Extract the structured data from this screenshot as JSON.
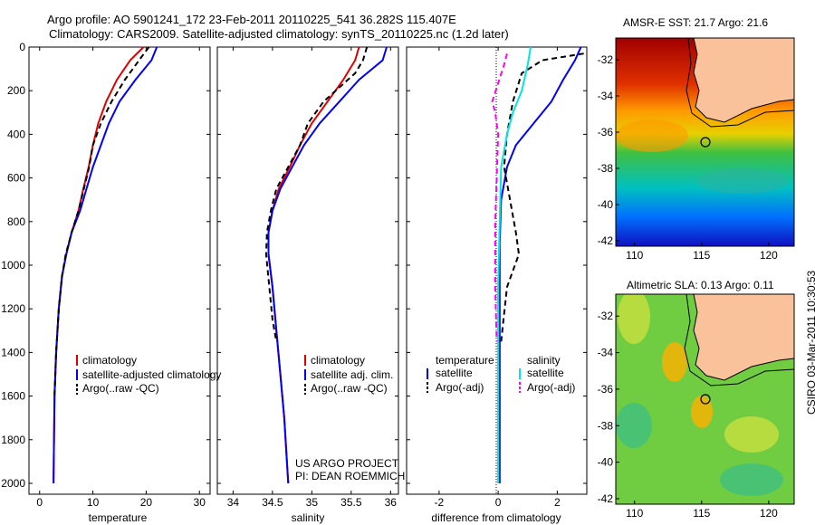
{
  "header": {
    "line1": "Argo profile: AO 5901241_172 23-Feb-2011 20110225_541 36.282S 115.407E",
    "line2": "Climatology: CARS2009. Satellite-adjusted climatology: synTS_20110225.nc (1.2d later)"
  },
  "side_label": "CSIRO 03-Mar-2011 10:30:53",
  "panels": {
    "temperature": {
      "xlabel": "temperature",
      "xticks": [
        "0",
        "10",
        "20",
        "30"
      ],
      "yticks": [
        "0",
        "200",
        "400",
        "600",
        "800",
        "1000",
        "1200",
        "1400",
        "1600",
        "1800",
        "2000"
      ],
      "legend": [
        "climatology",
        "satellite-adjusted climatology",
        "Argo(..raw -QC)"
      ]
    },
    "salinity": {
      "xlabel": "salinity",
      "xticks": [
        "34",
        "34.5",
        "35",
        "35.5",
        "36"
      ],
      "legend": [
        "climatology",
        "satellite adj. clim.",
        "Argo(..raw -QC)"
      ],
      "credit1": "US ARGO PROJECT",
      "credit2": "PI: DEAN ROEMMICH"
    },
    "difference": {
      "xlabel": "difference from climatology",
      "xticks": [
        "-2",
        "0",
        "2"
      ],
      "legend_left_title": "temperature",
      "legend_left": [
        "satellite",
        "Argo(-adj)"
      ],
      "legend_right_title": "salinity",
      "legend_right": [
        "satellite",
        "Argo(-adj)"
      ]
    }
  },
  "maps": {
    "sst_title": "AMSR-E SST: 21.7 Argo: 21.6",
    "sla_title": "Altimetric SLA: 0.13 Argo: 0.11",
    "xticks": [
      "110",
      "115",
      "120"
    ],
    "yticks": [
      "-32",
      "-34",
      "-36",
      "-38",
      "-40",
      "-42"
    ]
  },
  "colors": {
    "climatology": "#e00000",
    "satellite": "#0000ff",
    "argo": "#000000",
    "sal_satellite": "#00e5e5",
    "sal_argo": "#ff00ff",
    "land": "#f9c29a"
  },
  "chart_data": [
    {
      "type": "line",
      "xlabel": "temperature",
      "xlim": [
        -2,
        32
      ],
      "ylim": [
        2050,
        0
      ],
      "series": [
        {
          "name": "climatology",
          "x": [
            19.5,
            17,
            14.5,
            12.5,
            11,
            10,
            9.2,
            8.2,
            7.3,
            6,
            5,
            4.2,
            3.6,
            3.1,
            2.8,
            2.6
          ],
          "y": [
            0,
            60,
            150,
            250,
            350,
            450,
            550,
            650,
            750,
            850,
            950,
            1050,
            1200,
            1400,
            1600,
            2000
          ]
        },
        {
          "name": "satellite-adjusted climatology",
          "x": [
            22,
            21,
            18,
            15,
            13,
            11.5,
            10,
            8.8,
            7.6,
            6,
            5,
            4.2,
            3.6,
            3.1,
            2.8,
            2.6
          ],
          "y": [
            0,
            60,
            150,
            250,
            350,
            450,
            550,
            650,
            750,
            850,
            950,
            1050,
            1200,
            1400,
            1600,
            2000
          ]
        },
        {
          "name": "Argo(..raw -QC)",
          "x": [
            20.5,
            19,
            16,
            13.5,
            11.5,
            10,
            9.3,
            8.3,
            7.3,
            6,
            4.9,
            4.2,
            3.6,
            3.1,
            2.8
          ],
          "y": [
            0,
            50,
            150,
            250,
            350,
            450,
            550,
            650,
            750,
            850,
            950,
            1050,
            1200,
            1400,
            1600
          ]
        }
      ]
    },
    {
      "type": "line",
      "xlabel": "salinity",
      "xlim": [
        33.8,
        36.1
      ],
      "ylim": [
        2050,
        0
      ],
      "series": [
        {
          "name": "climatology",
          "x": [
            35.6,
            35.55,
            35.4,
            35.2,
            35.0,
            34.85,
            34.72,
            34.58,
            34.5,
            34.45,
            34.45,
            34.5,
            34.55,
            34.6,
            34.65,
            34.7
          ],
          "y": [
            0,
            60,
            150,
            250,
            350,
            450,
            550,
            650,
            750,
            850,
            950,
            1100,
            1300,
            1500,
            1700,
            2000
          ]
        },
        {
          "name": "satellite adj. clim.",
          "x": [
            35.95,
            35.9,
            35.6,
            35.35,
            35.1,
            34.9,
            34.75,
            34.6,
            34.5,
            34.45,
            34.45,
            34.5,
            34.55,
            34.6,
            34.65,
            34.7
          ],
          "y": [
            0,
            60,
            150,
            250,
            350,
            450,
            550,
            650,
            750,
            850,
            950,
            1100,
            1300,
            1500,
            1700,
            2000
          ]
        },
        {
          "name": "Argo(..raw -QC)",
          "x": [
            35.7,
            35.65,
            35.55,
            35.15,
            34.95,
            34.85,
            34.7,
            34.55,
            34.48,
            34.43,
            34.42,
            34.46,
            34.5,
            34.55
          ],
          "y": [
            0,
            60,
            120,
            250,
            350,
            450,
            550,
            650,
            750,
            850,
            950,
            1100,
            1250,
            1350
          ]
        }
      ]
    },
    {
      "type": "line",
      "xlabel": "difference from climatology",
      "xlim": [
        -3.1,
        3.0
      ],
      "ylim": [
        2050,
        0
      ],
      "series": [
        {
          "name": "temperature satellite",
          "x": [
            2.8,
            2.6,
            2.2,
            1.8,
            1.2,
            0.6,
            0.3,
            0.1,
            0.05,
            0.05,
            0.05,
            0.05,
            0.05
          ],
          "y": [
            0,
            60,
            150,
            250,
            350,
            450,
            550,
            700,
            900,
            1100,
            1400,
            1800,
            2000
          ]
        },
        {
          "name": "temperature Argo(-adj)",
          "x": [
            2.9,
            1.5,
            0.8,
            0.5,
            0.3,
            0.2,
            0.4,
            0.6,
            0.7,
            0.3,
            0.1
          ],
          "y": [
            30,
            60,
            120,
            250,
            400,
            550,
            700,
            850,
            950,
            1100,
            1350
          ]
        },
        {
          "name": "salinity satellite",
          "x": [
            1.1,
            1.0,
            0.8,
            0.5,
            0.3,
            0.1,
            0.05,
            0.0,
            0.0,
            0.0
          ],
          "y": [
            0,
            80,
            200,
            300,
            400,
            550,
            800,
            1100,
            1500,
            2000
          ]
        },
        {
          "name": "salinity Argo(-adj)",
          "x": [
            0.3,
            0.2,
            -0.2,
            -0.1,
            0.0,
            -0.05,
            -0.1,
            -0.1,
            -0.05
          ],
          "y": [
            30,
            80,
            250,
            300,
            400,
            600,
            800,
            1100,
            1350
          ]
        }
      ]
    }
  ]
}
